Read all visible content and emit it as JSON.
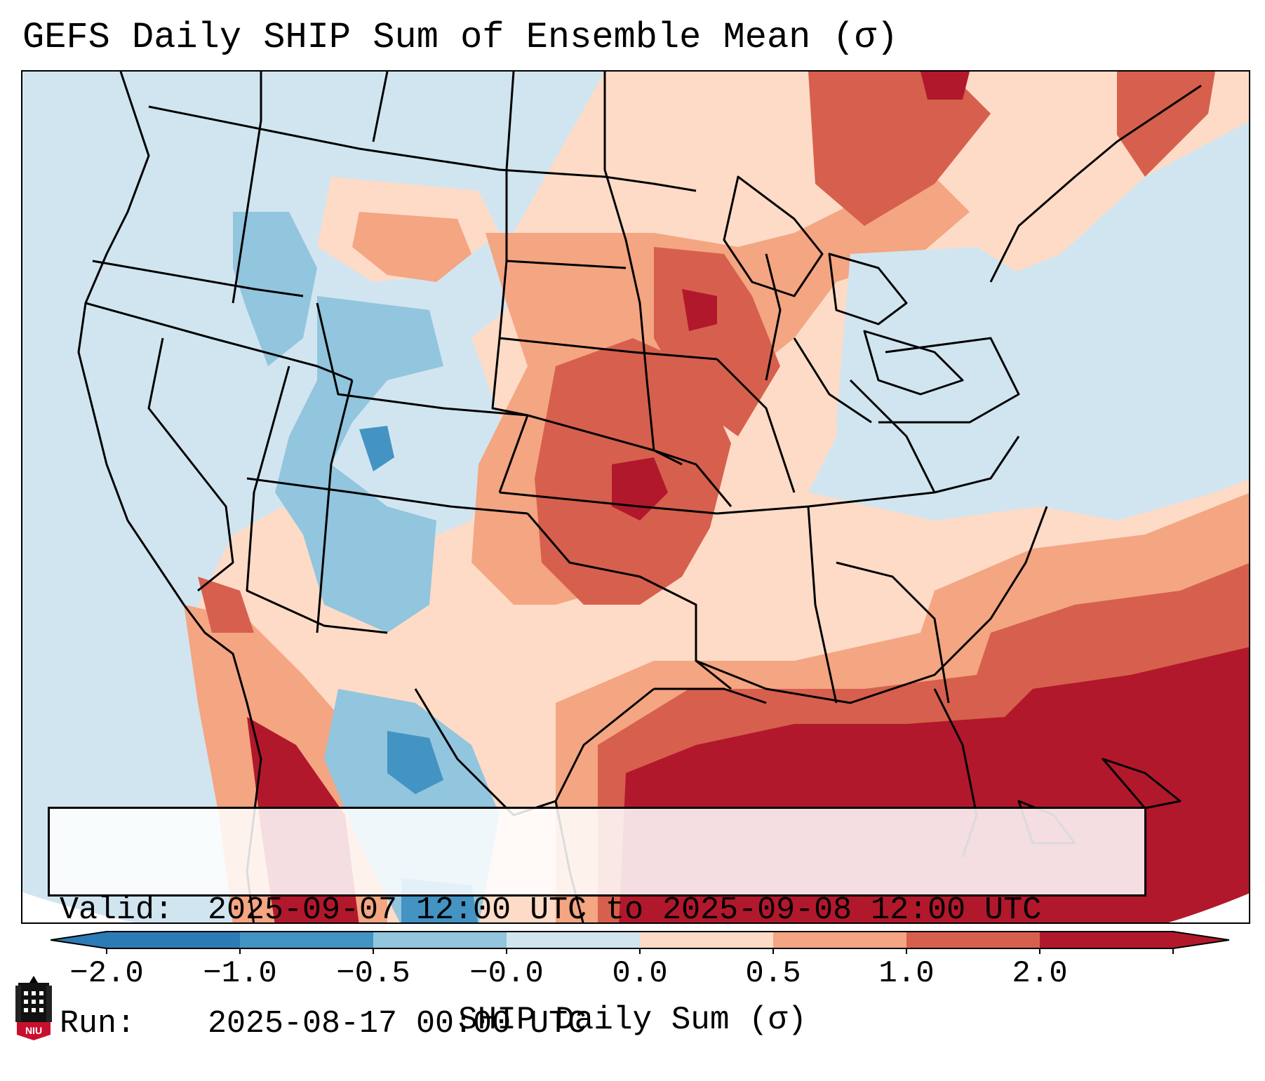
{
  "title": "GEFS Daily SHIP Sum of Ensemble Mean (σ)",
  "info": {
    "valid_label": "Valid:",
    "valid_value": "2025-09-07 12:00 UTC to 2025-09-08 12:00 UTC",
    "run_label": "Run:",
    "run_value": "2025-08-17 00:00 UTC"
  },
  "colorbar": {
    "label": "SHIP Daily Sum (σ)",
    "ticks": [
      "−2.0",
      "−1.0",
      "−0.5",
      "−0.0",
      "0.0",
      "0.5",
      "1.0",
      "2.0"
    ],
    "colors": [
      "#2c7bb6",
      "#4393c3",
      "#92c5de",
      "#d1e5f0",
      "#fddbc7",
      "#f4a582",
      "#d6604d",
      "#b2182b"
    ],
    "extend": "both"
  },
  "logo": {
    "text": "NIU",
    "icon": "niu-tower-logo-icon"
  },
  "legend_colors": {
    "ocean_bg": "#d0e3ef",
    "strong_neg": "#4393c3",
    "mod_neg": "#92c5de",
    "weak_neg": "#d1e5f0",
    "weak_pos": "#fddbc7",
    "mod_pos": "#f4a582",
    "strong_pos": "#d6604d",
    "extreme_pos": "#b2182b"
  }
}
